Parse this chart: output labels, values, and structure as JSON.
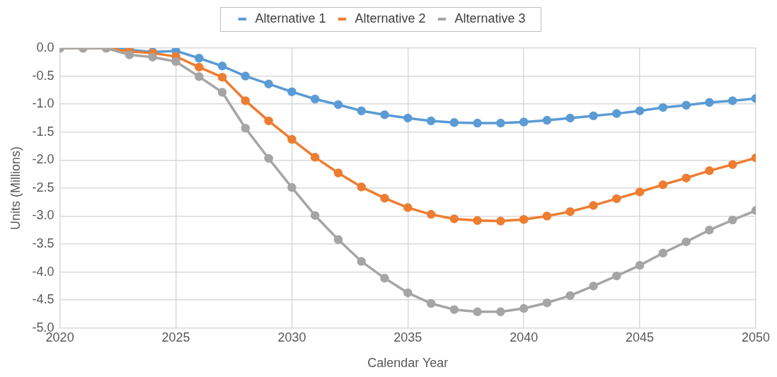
{
  "chart_data": {
    "type": "line",
    "xlabel": "Calendar Year",
    "ylabel": "Units (Millions)",
    "x": [
      2020,
      2021,
      2022,
      2023,
      2024,
      2025,
      2026,
      2027,
      2028,
      2029,
      2030,
      2031,
      2032,
      2033,
      2034,
      2035,
      2036,
      2037,
      2038,
      2039,
      2040,
      2041,
      2042,
      2043,
      2044,
      2045,
      2046,
      2047,
      2048,
      2049,
      2050
    ],
    "series": [
      {
        "name": "Alternative 1",
        "color": "#5b9bd5",
        "values": [
          0,
          0,
          0,
          -0.03,
          -0.07,
          -0.05,
          -0.18,
          -0.32,
          -0.5,
          -0.64,
          -0.78,
          -0.91,
          -1.01,
          -1.12,
          -1.19,
          -1.25,
          -1.3,
          -1.33,
          -1.34,
          -1.34,
          -1.32,
          -1.29,
          -1.25,
          -1.21,
          -1.17,
          -1.12,
          -1.06,
          -1.02,
          -0.97,
          -0.94,
          -0.9
        ]
      },
      {
        "name": "Alternative 2",
        "color": "#ed7d31",
        "values": [
          0,
          0,
          0,
          -0.06,
          -0.09,
          -0.15,
          -0.34,
          -0.52,
          -0.94,
          -1.3,
          -1.63,
          -1.95,
          -2.23,
          -2.48,
          -2.68,
          -2.85,
          -2.97,
          -3.05,
          -3.08,
          -3.09,
          -3.06,
          -3,
          -2.92,
          -2.81,
          -2.69,
          -2.57,
          -2.44,
          -2.32,
          -2.19,
          -2.08,
          -1.96
        ]
      },
      {
        "name": "Alternative 3",
        "color": "#a5a5a5",
        "values": [
          0,
          0,
          0,
          -0.12,
          -0.16,
          -0.24,
          -0.51,
          -0.79,
          -1.43,
          -1.97,
          -2.49,
          -2.99,
          -3.42,
          -3.81,
          -4.11,
          -4.37,
          -4.56,
          -4.67,
          -4.71,
          -4.71,
          -4.65,
          -4.55,
          -4.42,
          -4.25,
          -4.07,
          -3.88,
          -3.66,
          -3.46,
          -3.25,
          -3.07,
          -2.9
        ]
      }
    ],
    "xlim": [
      2020,
      2050
    ],
    "xticks": [
      2020,
      2025,
      2030,
      2035,
      2040,
      2045,
      2050
    ],
    "ylim": [
      -5,
      0
    ],
    "yticks": [
      {
        "value": -5,
        "label": "-5.0"
      },
      {
        "value": -4.5,
        "label": "-4.5"
      },
      {
        "value": -4,
        "label": "-4.0"
      },
      {
        "value": -3.5,
        "label": "-3.5"
      },
      {
        "value": -3,
        "label": "-3.0"
      },
      {
        "value": -2.5,
        "label": "-2.5"
      },
      {
        "value": -2,
        "label": "-2.0"
      },
      {
        "value": -1.5,
        "label": "-1.5"
      },
      {
        "value": -1,
        "label": "-1.0"
      },
      {
        "value": -0.5,
        "label": "-0.5"
      },
      {
        "value": 0,
        "label": "0.0"
      }
    ],
    "grid": true,
    "legend": "top",
    "marker": "circle",
    "line_style": "solid"
  }
}
